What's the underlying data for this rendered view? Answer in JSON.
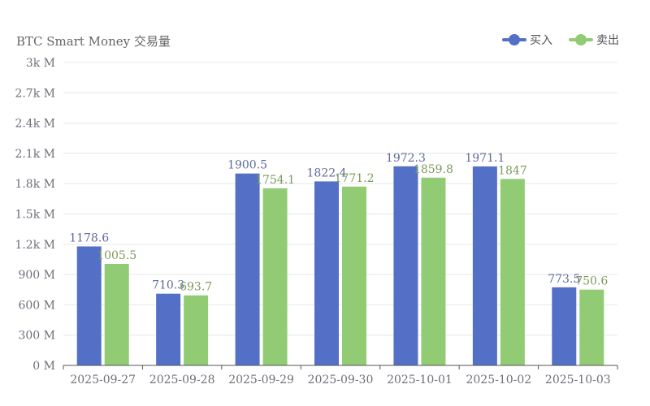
{
  "colors": {
    "buy": "#5470c6",
    "sell": "#91cc75",
    "grid": "#e8e8e8",
    "axis": "#555555",
    "tick_text": "#6e7079",
    "buy_label": "#5c6b9c",
    "sell_label": "#7a9a5a"
  },
  "chart_data": {
    "type": "bar",
    "title": "BTC Smart Money 交易量",
    "categories": [
      "2025-09-27",
      "2025-09-28",
      "2025-09-29",
      "2025-09-30",
      "2025-10-01",
      "2025-10-02",
      "2025-10-03"
    ],
    "series": [
      {
        "name": "买入",
        "values": [
          1178.6,
          710.3,
          1900.5,
          1822.4,
          1972.3,
          1971.1,
          773.5
        ],
        "labels": [
          "1178.6",
          "710.3",
          "1900.5",
          "1822.4",
          "1972.3",
          "1971.1",
          "773.5"
        ]
      },
      {
        "name": "卖出",
        "values": [
          1005.5,
          693.7,
          1754.1,
          1771.2,
          1859.8,
          1847,
          750.6
        ],
        "labels": [
          "1005.5",
          "693.7",
          "1754.1",
          "1771.2",
          "1859.8",
          "1847",
          "750.6"
        ]
      }
    ],
    "ylim": [
      0,
      3000
    ],
    "yticks": [
      0,
      300,
      600,
      900,
      1200,
      1500,
      1800,
      2100,
      2400,
      2700,
      3000
    ],
    "ytick_labels": [
      "0 M",
      "300 M",
      "600 M",
      "900 M",
      "1.2k M",
      "1.5k M",
      "1.8k M",
      "2.1k M",
      "2.4k M",
      "2.7k M",
      "3k M"
    ],
    "grid": true,
    "legend_position": "top-right",
    "xlabel": "",
    "ylabel": ""
  }
}
